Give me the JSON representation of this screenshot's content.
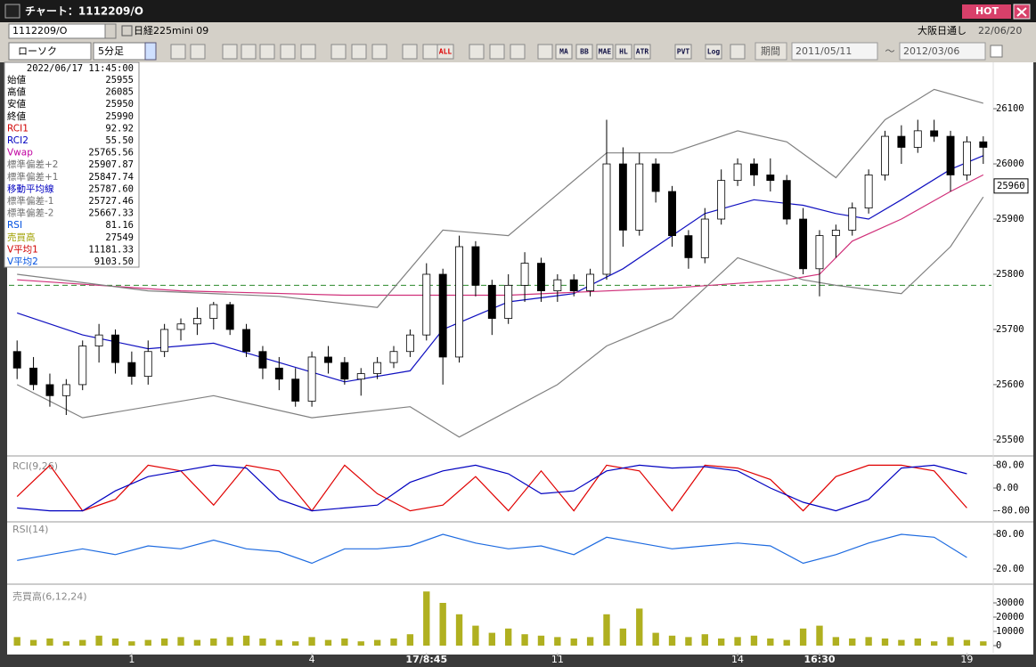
{
  "window": {
    "title": "チャート：1112209/O",
    "badge": "HOT"
  },
  "toolbar": {
    "symbol": "1112209/O",
    "instrument": "日経225mini 09",
    "market": "大阪日通し",
    "date": "22/06/20",
    "chart_style": "ローソク",
    "interval": "5分足",
    "buttons": [
      "ALL",
      "MA",
      "BB",
      "MAE",
      "HL",
      "ATR",
      "PVT",
      "Log"
    ],
    "period_label": "期間",
    "from": "2011/05/11",
    "range_sep": "〜",
    "to": "2012/03/06"
  },
  "info_panel": {
    "timestamp": "2022/06/17  11:45:00",
    "rows": [
      {
        "label": "始値",
        "value": "25955",
        "color": "#000000"
      },
      {
        "label": "高値",
        "value": "26085",
        "color": "#000000"
      },
      {
        "label": "安値",
        "value": "25950",
        "color": "#000000"
      },
      {
        "label": "終値",
        "value": "25990",
        "color": "#000000"
      },
      {
        "label": "RCI1",
        "value": "92.92",
        "color": "#d00000"
      },
      {
        "label": "RCI2",
        "value": "55.50",
        "color": "#0000c0"
      },
      {
        "label": "Vwap",
        "value": "25765.56",
        "color": "#c000a0"
      },
      {
        "label": "標準偏差+2",
        "value": "25907.87",
        "color": "#707070"
      },
      {
        "label": "標準偏差+1",
        "value": "25847.74",
        "color": "#707070"
      },
      {
        "label": "移動平均線",
        "value": "25787.60",
        "color": "#0000c0"
      },
      {
        "label": "標準偏差-1",
        "value": "25727.46",
        "color": "#707070"
      },
      {
        "label": "標準偏差-2",
        "value": "25667.33",
        "color": "#707070"
      },
      {
        "label": "RSI",
        "value": "81.16",
        "color": "#0050e0"
      },
      {
        "label": "売買高",
        "value": "27549",
        "color": "#a0a000"
      },
      {
        "label": "V平均1",
        "value": "11181.33",
        "color": "#d00000"
      },
      {
        "label": "V平均2",
        "value": "9103.50",
        "color": "#0050e0"
      }
    ]
  },
  "chart_data": [
    {
      "type": "candlestick",
      "xlim": [
        -0.5,
        59.5
      ],
      "ylim": [
        25474,
        26155
      ],
      "yticks": [
        25500,
        25600,
        25700,
        25800,
        25900,
        26000,
        26100
      ],
      "last_price": 25960,
      "reference_line": 25780,
      "up_color": "#ffffff",
      "down_color": "#000000",
      "open": [
        25660,
        25630,
        25600,
        25580,
        25600,
        25670,
        25690,
        25640,
        25615,
        25660,
        25700,
        25710,
        25720,
        25745,
        25700,
        25660,
        25630,
        25610,
        25570,
        25650,
        25640,
        25610,
        25620,
        25640,
        25660,
        25690,
        25800,
        25650,
        25850,
        25780,
        25720,
        25780,
        25820,
        25770,
        25790,
        25770,
        25800,
        26000,
        25880,
        26000,
        25950,
        25870,
        25830,
        25900,
        25970,
        26000,
        25980,
        25970,
        25900,
        25810,
        25870,
        25880,
        25920,
        25980,
        26050,
        26030,
        26060,
        26050,
        25980,
        26040
      ],
      "high": [
        25680,
        25650,
        25620,
        25610,
        25680,
        25710,
        25700,
        25660,
        25680,
        25710,
        25720,
        25740,
        25750,
        25750,
        25710,
        25670,
        25650,
        25630,
        25660,
        25670,
        25650,
        25630,
        25650,
        25670,
        25700,
        25820,
        25810,
        25870,
        25860,
        25790,
        25800,
        25840,
        25830,
        25800,
        25800,
        25810,
        26080,
        26030,
        26020,
        26010,
        25960,
        25880,
        25920,
        25990,
        26010,
        26010,
        26010,
        25980,
        25920,
        25880,
        25890,
        25930,
        25990,
        26060,
        26070,
        26080,
        26080,
        26060,
        26050,
        26050
      ],
      "low": [
        25610,
        25590,
        25560,
        25545,
        25590,
        25640,
        25620,
        25600,
        25600,
        25650,
        25680,
        25690,
        25700,
        25690,
        25650,
        25610,
        25590,
        25560,
        25560,
        25620,
        25600,
        25580,
        25610,
        25630,
        25650,
        25680,
        25600,
        25640,
        25760,
        25690,
        25710,
        25750,
        25750,
        25750,
        25760,
        25760,
        25790,
        25850,
        25870,
        25930,
        25850,
        25810,
        25820,
        25890,
        25960,
        25960,
        25950,
        25890,
        25800,
        25760,
        25830,
        25870,
        25910,
        25970,
        26000,
        26020,
        26040,
        25950,
        25970,
        26000
      ],
      "close": [
        25630,
        25600,
        25580,
        25600,
        25670,
        25690,
        25640,
        25615,
        25660,
        25700,
        25710,
        25720,
        25745,
        25700,
        25660,
        25630,
        25610,
        25570,
        25650,
        25640,
        25610,
        25620,
        25640,
        25660,
        25690,
        25800,
        25650,
        25850,
        25780,
        25720,
        25780,
        25820,
        25770,
        25790,
        25770,
        25800,
        26000,
        25880,
        26000,
        25950,
        25870,
        25830,
        25900,
        25970,
        26000,
        25980,
        25970,
        25900,
        25810,
        25870,
        25880,
        25920,
        25980,
        26050,
        26030,
        26060,
        26050,
        25980,
        26040,
        26030
      ],
      "overlays": [
        {
          "color": "#1010c0",
          "x": [
            0,
            4,
            8,
            12,
            16,
            20,
            24,
            26,
            30,
            34,
            37,
            40,
            42,
            45,
            48,
            50,
            52,
            54,
            57,
            59
          ],
          "values": [
            25730,
            25690,
            25665,
            25675,
            25640,
            25605,
            25625,
            25700,
            25750,
            25765,
            25810,
            25870,
            25910,
            25935,
            25925,
            25910,
            25900,
            25935,
            25990,
            26015
          ]
        },
        {
          "color": "#d0307a",
          "x": [
            0,
            10,
            20,
            30,
            40,
            47,
            49,
            51,
            54,
            57,
            59
          ],
          "values": [
            25790,
            25770,
            25762,
            25762,
            25775,
            25790,
            25800,
            25860,
            25900,
            25950,
            25980
          ]
        },
        {
          "color": "#808080",
          "x": [
            0,
            8,
            16,
            22,
            26,
            30,
            36,
            40,
            44,
            47,
            50,
            53,
            56,
            59
          ],
          "values": [
            25800,
            25770,
            25760,
            25740,
            25880,
            25870,
            26020,
            26020,
            26060,
            26040,
            25975,
            26080,
            26135,
            26110
          ]
        },
        {
          "color": "#808080",
          "x": [
            0,
            4,
            12,
            18,
            24,
            27,
            33,
            36,
            40,
            44,
            48,
            50,
            54,
            57,
            59
          ],
          "values": [
            25600,
            25540,
            25580,
            25540,
            25560,
            25505,
            25600,
            25670,
            25720,
            25830,
            25790,
            25780,
            25765,
            25850,
            25940
          ]
        }
      ]
    },
    {
      "type": "line",
      "title": "RCI(9,26)",
      "xlim": [
        -0.5,
        59.5
      ],
      "ylim": [
        -100,
        100
      ],
      "yticks": [
        {
          "value": 80,
          "label": "80.00"
        },
        {
          "value": 0,
          "label": "0.00"
        },
        {
          "value": -80,
          "label": "-80.00"
        }
      ],
      "x": [
        0,
        2,
        4,
        6,
        8,
        10,
        12,
        14,
        16,
        18,
        20,
        22,
        24,
        26,
        28,
        30,
        32,
        34,
        36,
        38,
        40,
        42,
        44,
        46,
        48,
        50,
        52,
        54,
        56,
        58
      ],
      "series": [
        {
          "color": "#e00000",
          "values": [
            -30,
            80,
            -80,
            -40,
            80,
            60,
            -60,
            80,
            60,
            -80,
            80,
            -20,
            -80,
            -60,
            40,
            -80,
            60,
            -80,
            80,
            60,
            -80,
            80,
            70,
            30,
            -80,
            40,
            80,
            80,
            60,
            -70
          ]
        },
        {
          "color": "#0000c0",
          "values": [
            -70,
            -80,
            -80,
            -10,
            40,
            60,
            80,
            70,
            -40,
            -80,
            -70,
            -60,
            20,
            60,
            80,
            50,
            -20,
            -10,
            60,
            80,
            70,
            75,
            60,
            0,
            -50,
            -80,
            -40,
            70,
            80,
            50
          ]
        }
      ]
    },
    {
      "type": "line",
      "title": "RSI(14)",
      "xlim": [
        -0.5,
        59.5
      ],
      "ylim": [
        0,
        100
      ],
      "yticks": [
        {
          "value": 80,
          "label": "80.00"
        },
        {
          "value": 20,
          "label": "20.00"
        }
      ],
      "x": [
        0,
        2,
        4,
        6,
        8,
        10,
        12,
        14,
        16,
        18,
        20,
        22,
        24,
        26,
        28,
        30,
        32,
        34,
        36,
        38,
        40,
        42,
        44,
        46,
        48,
        50,
        52,
        54,
        56,
        58
      ],
      "series": [
        {
          "color": "#1e6be0",
          "values": [
            35,
            45,
            55,
            45,
            60,
            55,
            70,
            55,
            50,
            30,
            55,
            55,
            60,
            80,
            65,
            55,
            60,
            45,
            75,
            65,
            55,
            60,
            65,
            60,
            30,
            45,
            65,
            80,
            75,
            40
          ]
        }
      ]
    },
    {
      "type": "bar",
      "title": "売買高(6,12,24)",
      "xlim": [
        -0.5,
        59.5
      ],
      "ylim": [
        0,
        39000
      ],
      "yticks": [
        0,
        10000,
        20000,
        30000
      ],
      "color": "#b0b020",
      "xticks": [
        {
          "value": 7,
          "label": "1"
        },
        {
          "value": 18,
          "label": "4"
        },
        {
          "value": 25,
          "label": "17/8:45"
        },
        {
          "value": 33,
          "label": "11"
        },
        {
          "value": 44,
          "label": "14"
        },
        {
          "value": 49,
          "label": "16:30"
        },
        {
          "value": 58,
          "label": "19"
        }
      ],
      "values": [
        6000,
        4000,
        5000,
        3000,
        4000,
        7000,
        5000,
        3000,
        4000,
        5000,
        6000,
        4000,
        5000,
        6000,
        7000,
        5000,
        4000,
        3000,
        6000,
        4000,
        5000,
        3000,
        4000,
        5000,
        8000,
        38000,
        30000,
        22000,
        14000,
        9000,
        12000,
        8000,
        7000,
        6000,
        5000,
        6000,
        22000,
        12000,
        26000,
        9000,
        7000,
        6000,
        8000,
        5000,
        6000,
        7000,
        5000,
        4000,
        12000,
        14000,
        6000,
        5000,
        6000,
        5000,
        4000,
        5000,
        3000,
        6000,
        4000,
        3000
      ]
    }
  ]
}
